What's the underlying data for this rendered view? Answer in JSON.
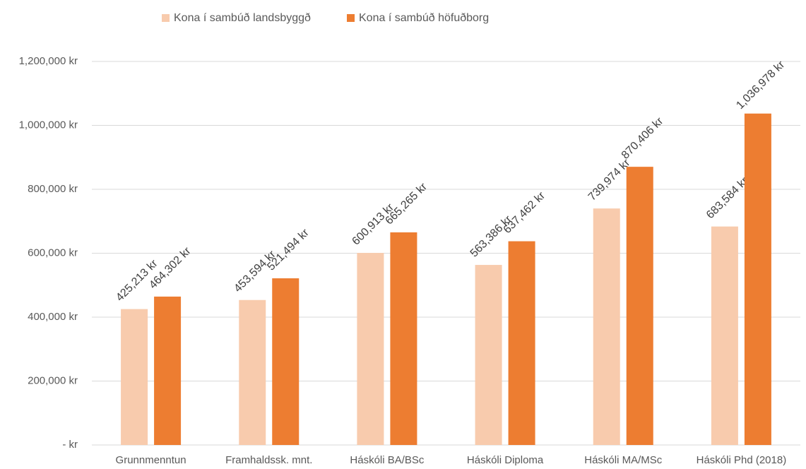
{
  "chart_data": {
    "type": "bar",
    "categories": [
      "Grunnmenntun",
      "Framhaldssk. mnt.",
      "Háskóli BA/BSc",
      "Háskóli Diploma",
      "Háskóli MA/MSc",
      "Háskóli Phd (2018)"
    ],
    "series": [
      {
        "name": "Kona í sambúð landsbyggð",
        "color": "#f8cbad",
        "values": [
          425213,
          453594,
          600913,
          563386,
          739974,
          683584
        ],
        "value_labels": [
          "425,213 kr",
          "453,594 kr",
          "600,913 kr",
          "563,386 kr",
          "739,974 kr",
          "683,584 kr"
        ]
      },
      {
        "name": "Kona í sambúð höfuðborg",
        "color": "#ed7d31",
        "values": [
          464302,
          521494,
          665265,
          637462,
          870406,
          1036978
        ],
        "value_labels": [
          "464,302 kr",
          "521,494 kr",
          "665,265 kr",
          "637,462 kr",
          "870,406 kr",
          "1,036,978 kr"
        ]
      }
    ],
    "ylim": [
      0,
      1200000
    ],
    "yticks": [
      {
        "value": 0,
        "label": "-  kr"
      },
      {
        "value": 200000,
        "label": "200,000 kr"
      },
      {
        "value": 400000,
        "label": "400,000 kr"
      },
      {
        "value": 600000,
        "label": "600,000 kr"
      },
      {
        "value": 800000,
        "label": "800,000 kr"
      },
      {
        "value": 1000000,
        "label": "1,000,000 kr"
      },
      {
        "value": 1200000,
        "label": "1,200,000 kr"
      }
    ],
    "grid": true,
    "legend": "top"
  }
}
